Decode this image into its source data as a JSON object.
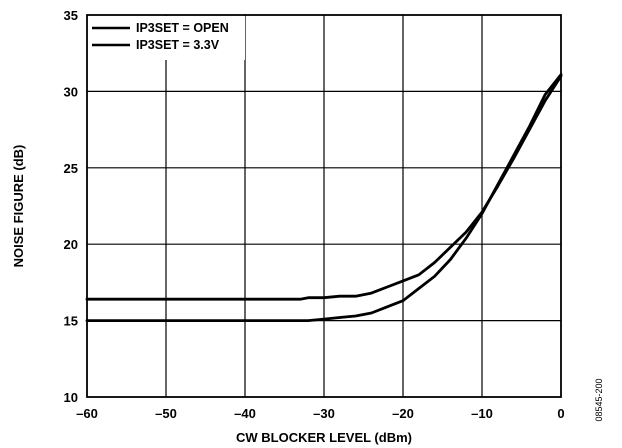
{
  "chart_data": {
    "type": "line",
    "title": "",
    "xlabel": "CW BLOCKER LEVEL (dBm)",
    "ylabel": "NOISE FIGURE (dB)",
    "xlim": [
      -60,
      0
    ],
    "ylim": [
      10,
      35
    ],
    "xticks": [
      -60,
      -50,
      -40,
      -30,
      -20,
      -10,
      0
    ],
    "yticks": [
      10,
      15,
      20,
      25,
      30,
      35
    ],
    "xtick_labels": [
      "–60",
      "–50",
      "–40",
      "–30",
      "–20",
      "–10",
      "0"
    ],
    "ytick_labels": [
      "10",
      "15",
      "20",
      "25",
      "30",
      "35"
    ],
    "grid": true,
    "legend_position": "top-left",
    "series": [
      {
        "name": "IP3SET = OPEN",
        "color": "#000000",
        "x": [
          -60,
          -50,
          -40,
          -35,
          -33,
          -32,
          -30,
          -28,
          -26,
          -24,
          -22,
          -20,
          -18,
          -16,
          -14,
          -12,
          -10,
          -8,
          -6,
          -4,
          -2,
          0
        ],
        "y": [
          16.4,
          16.4,
          16.4,
          16.4,
          16.4,
          16.5,
          16.5,
          16.6,
          16.6,
          16.8,
          17.2,
          17.6,
          18.0,
          18.8,
          19.8,
          20.8,
          22.1,
          23.8,
          25.6,
          27.5,
          29.4,
          31.0
        ]
      },
      {
        "name": "IP3SET = 3.3V",
        "color": "#000000",
        "x": [
          -60,
          -50,
          -40,
          -32,
          -30,
          -28,
          -26,
          -24,
          -22,
          -20,
          -18,
          -16,
          -14,
          -12,
          -10,
          -8,
          -6,
          -4,
          -2,
          0
        ],
        "y": [
          15.0,
          15.0,
          15.0,
          15.0,
          15.1,
          15.2,
          15.3,
          15.5,
          15.9,
          16.3,
          17.1,
          17.9,
          19.0,
          20.4,
          22.0,
          23.9,
          25.8,
          27.7,
          29.8,
          31.1
        ]
      }
    ]
  },
  "figure_id": "08545-200"
}
